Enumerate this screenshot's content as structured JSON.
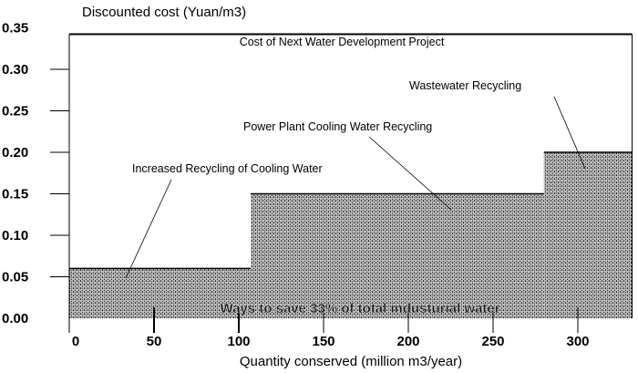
{
  "chart_data": {
    "type": "bar",
    "subtype": "step-supply-curve",
    "title": "",
    "ylabel": "Discounted cost (Yuan/m3)",
    "xlabel": "Quantity conserved (million m3/year)",
    "xlim": [
      0,
      332
    ],
    "ylim": [
      0,
      0.35
    ],
    "xticks": [
      "0",
      "50",
      "100",
      "150",
      "200",
      "250",
      "300"
    ],
    "xtick_values": [
      0,
      50,
      100,
      150,
      200,
      250,
      300
    ],
    "yticks": [
      "0.00",
      "0.05",
      "0.10",
      "0.15",
      "0.20",
      "0.25",
      "0.30",
      "0.35"
    ],
    "ytick_values": [
      0,
      0.05,
      0.1,
      0.15,
      0.2,
      0.25,
      0.3,
      0.35
    ],
    "steps": [
      {
        "name": "Increased Recycling of Cooling Water",
        "x_start": 0,
        "x_end": 107,
        "value": 0.06
      },
      {
        "name": "Power Plant Cooling Water Recycling",
        "x_start": 107,
        "x_end": 280,
        "value": 0.15
      },
      {
        "name": "Wastewater Recycling",
        "x_start": 280,
        "x_end": 332,
        "value": 0.2
      }
    ],
    "reference_line": {
      "label": "Cost of Next Water Development Project",
      "value": 0.35
    },
    "inner_label": "Ways to save 33% of total industurial water"
  }
}
